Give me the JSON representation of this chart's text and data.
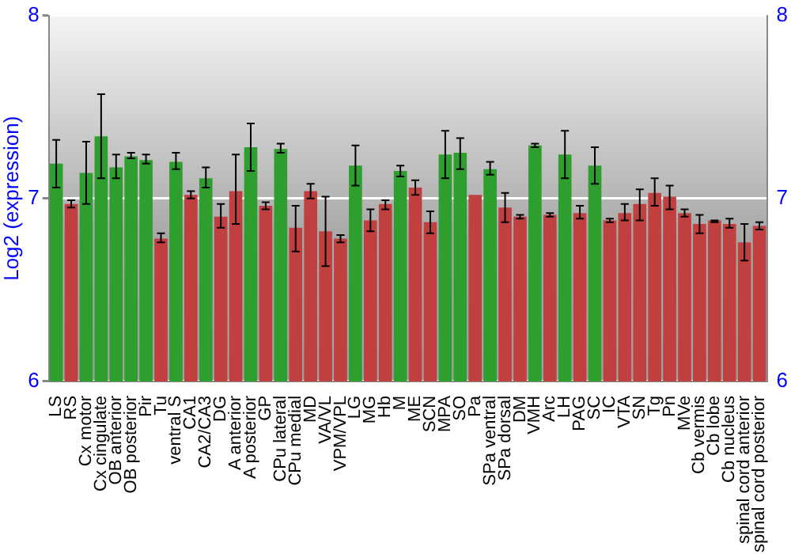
{
  "chart_data": {
    "type": "bar",
    "ylabel": "Log2 (expression)",
    "categories": [
      "LS",
      "RS",
      "Cx motor",
      "Cx cingulate",
      "OB anterior",
      "OB posterior",
      "Pir",
      "Tu",
      "ventral S",
      "CA1",
      "CA2/CA3",
      "DG",
      "A anterior",
      "A posterior",
      "GP",
      "CPu lateral",
      "CPu medial",
      "MD",
      "VA/VL",
      "VPM/VPL",
      "LG",
      "MG",
      "Hb",
      "M",
      "ME",
      "SCN",
      "MPA",
      "SO",
      "Pa",
      "SPa ventral",
      "SPa dorsal",
      "DM",
      "VMH",
      "Arc",
      "LH",
      "PAG",
      "SC",
      "IC",
      "VTA",
      "SN",
      "Tg",
      "Pn",
      "MVe",
      "Cb vermis",
      "Cb lobe",
      "Cb nucleus",
      "spinal cord anterior",
      "spinal cord posterior"
    ],
    "values": [
      7.19,
      6.97,
      7.14,
      7.34,
      7.17,
      7.23,
      7.21,
      6.78,
      7.2,
      7.02,
      7.11,
      6.9,
      7.04,
      7.28,
      6.96,
      7.27,
      6.84,
      7.04,
      6.82,
      6.78,
      7.18,
      6.88,
      6.97,
      7.15,
      7.06,
      6.87,
      7.24,
      7.25,
      7.02,
      7.16,
      6.95,
      6.9,
      7.29,
      6.91,
      7.24,
      6.92,
      7.18,
      6.88,
      6.92,
      6.97,
      7.03,
      7.01,
      6.92,
      6.86,
      6.88,
      6.86,
      6.76,
      6.85
    ],
    "errors": [
      [
        7.06,
        7.32
      ],
      [
        6.95,
        6.99
      ],
      [
        6.97,
        7.31
      ],
      [
        7.11,
        7.57
      ],
      [
        7.11,
        7.24
      ],
      [
        7.22,
        7.25
      ],
      [
        7.19,
        7.24
      ],
      [
        6.76,
        6.81
      ],
      [
        7.16,
        7.25
      ],
      [
        7.0,
        7.04
      ],
      [
        7.06,
        7.17
      ],
      [
        6.84,
        6.97
      ],
      [
        6.86,
        7.24
      ],
      [
        7.15,
        7.41
      ],
      [
        6.94,
        6.98
      ],
      [
        7.25,
        7.3
      ],
      [
        6.71,
        6.96
      ],
      [
        7.0,
        7.08
      ],
      [
        6.63,
        7.01
      ],
      [
        6.76,
        6.8
      ],
      [
        7.07,
        7.29
      ],
      [
        6.82,
        6.94
      ],
      [
        6.94,
        6.99
      ],
      [
        7.12,
        7.18
      ],
      [
        7.02,
        7.1
      ],
      [
        6.81,
        6.93
      ],
      [
        7.11,
        7.37
      ],
      [
        7.16,
        7.33
      ],
      null,
      [
        7.13,
        7.2
      ],
      [
        6.87,
        7.03
      ],
      [
        6.89,
        6.91
      ],
      [
        7.28,
        7.3
      ],
      [
        6.9,
        6.92
      ],
      [
        7.11,
        7.37
      ],
      [
        6.89,
        6.96
      ],
      [
        7.08,
        7.28
      ],
      [
        6.87,
        6.89
      ],
      [
        6.88,
        6.97
      ],
      [
        6.88,
        7.05
      ],
      [
        6.96,
        7.11
      ],
      [
        6.94,
        7.07
      ],
      [
        6.9,
        6.94
      ],
      [
        6.81,
        6.91
      ],
      [
        6.87,
        6.88
      ],
      [
        6.84,
        6.89
      ],
      [
        6.66,
        6.86
      ],
      [
        6.83,
        6.87
      ]
    ],
    "colors": [
      "#2e9e2e",
      "#c04040",
      "#2e9e2e",
      "#2e9e2e",
      "#2e9e2e",
      "#2e9e2e",
      "#2e9e2e",
      "#c04040",
      "#2e9e2e",
      "#c04040",
      "#2e9e2e",
      "#c04040",
      "#c04040",
      "#2e9e2e",
      "#c04040",
      "#2e9e2e",
      "#c04040",
      "#c04040",
      "#c04040",
      "#c04040",
      "#2e9e2e",
      "#c04040",
      "#c04040",
      "#2e9e2e",
      "#c04040",
      "#c04040",
      "#2e9e2e",
      "#2e9e2e",
      "#c04040",
      "#2e9e2e",
      "#c04040",
      "#c04040",
      "#2e9e2e",
      "#c04040",
      "#2e9e2e",
      "#c04040",
      "#2e9e2e",
      "#c04040",
      "#c04040",
      "#c04040",
      "#c04040",
      "#c04040",
      "#c04040",
      "#c04040",
      "#c04040",
      "#c04040",
      "#c04040",
      "#c04040"
    ],
    "ylim": [
      6,
      8
    ],
    "yticks": [
      6,
      7,
      8
    ],
    "y2lim": [
      6,
      8
    ],
    "y2ticks": [
      6,
      7,
      8
    ],
    "grid": "y",
    "legend": false
  }
}
